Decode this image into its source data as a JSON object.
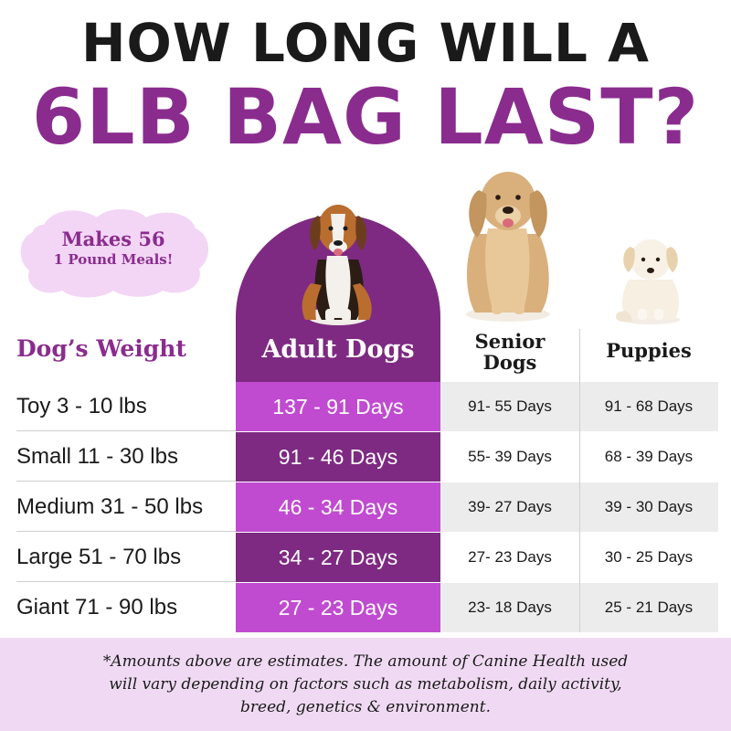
{
  "title": {
    "line1": "HOW LONG WILL A",
    "line2": "6LB BAG LAST?"
  },
  "badge": {
    "line1": "Makes 56",
    "line2": "1 Pound Meals!"
  },
  "colors": {
    "primary_purple": "#8a2c8e",
    "adult_dark": "#7e2a82",
    "adult_light": "#c04bd0",
    "gray_cell": "#ececec",
    "footer_bg": "#f0daf3",
    "badge_bg": "#f3d6f6"
  },
  "images": {
    "adult_dog": "beagle-dog-image",
    "senior_dog": "golden-retriever-image",
    "puppy": "white-puppy-image"
  },
  "table": {
    "headers": {
      "weight": "Dog’s Weight",
      "adult": "Adult Dogs",
      "senior_line1": "Senior",
      "senior_line2": "Dogs",
      "puppy": "Puppies"
    },
    "rows": [
      {
        "weight": "Toy 3 - 10 lbs",
        "adult": "137 - 91 Days",
        "senior": "91- 55 Days",
        "puppy": "91 - 68 Days"
      },
      {
        "weight": "Small 11 - 30 lbs",
        "adult": "91 - 46 Days",
        "senior": "55- 39 Days",
        "puppy": "68 - 39 Days"
      },
      {
        "weight": "Medium 31 - 50 lbs",
        "adult": "46 - 34 Days",
        "senior": "39- 27 Days",
        "puppy": "39 - 30 Days"
      },
      {
        "weight": "Large 51 - 70 lbs",
        "adult": "34 - 27 Days",
        "senior": "27- 23 Days",
        "puppy": "30 - 25 Days"
      },
      {
        "weight": "Giant 71 - 90 lbs",
        "adult": "27 - 23 Days",
        "senior": "23- 18 Days",
        "puppy": "25 - 21 Days"
      }
    ]
  },
  "footer": {
    "line1": "*Amounts above are estimates. The amount of Canine Health used",
    "line2": "will vary depending on factors such as metabolism, daily activity,",
    "line3": "breed, genetics & environment."
  }
}
